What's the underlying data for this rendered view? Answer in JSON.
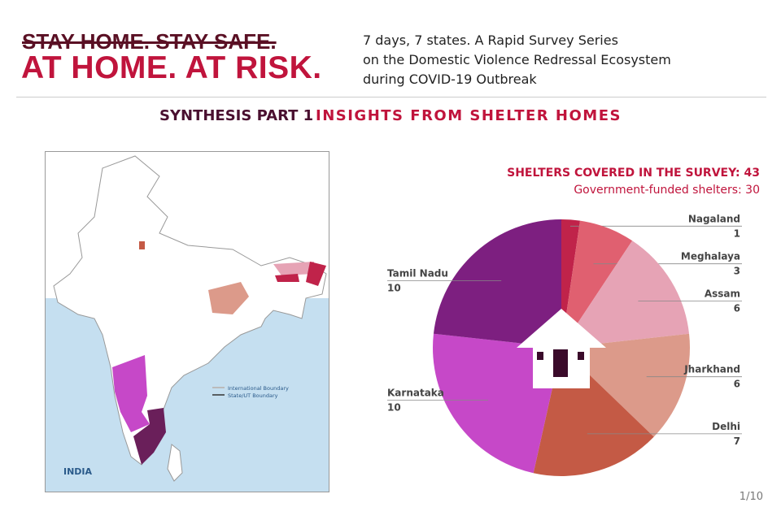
{
  "header": {
    "title_struck": "STAY HOME. STAY SAFE.",
    "title_main": "AT HOME. AT RISK.",
    "subtitle_lines": [
      "7 days, 7 states. A Rapid Survey Series",
      "on the Domestic Violence Redressal Ecosystem",
      "during COVID-19 Outbreak"
    ]
  },
  "section": {
    "part": "SYNTHESIS PART 1",
    "title": "INSIGHTS FROM SHELTER HOMES"
  },
  "map": {
    "country_label": "INDIA",
    "legend": [
      "International Boundary",
      "State/UT Boundary"
    ],
    "sea_color": "#c5dff0"
  },
  "chart_data": {
    "type": "pie",
    "title": "SHELTERS COVERED IN THE SURVEY: 43",
    "subtitle": "Government-funded shelters: 30",
    "categories": [
      "Nagaland",
      "Meghalaya",
      "Assam",
      "Jharkhand",
      "Delhi",
      "Karnataka",
      "Tamil Nadu"
    ],
    "values": [
      1,
      3,
      6,
      6,
      7,
      10,
      10
    ],
    "colors": [
      "#c0234a",
      "#e06070",
      "#e6a3b5",
      "#dc9a8a",
      "#c45a45",
      "#c648c8",
      "#7d1f80"
    ],
    "center_icon": "house-icon"
  },
  "footer": {
    "page": "1/10"
  }
}
